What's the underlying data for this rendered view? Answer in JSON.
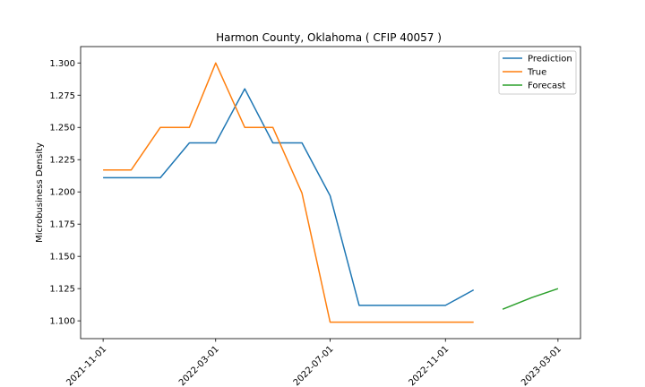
{
  "chart_data": {
    "type": "line",
    "title": "Harmon County, Oklahoma ( CFIP 40057 )",
    "xlabel": "",
    "ylabel": "Microbusiness Density",
    "xlim": [
      "2021-10-08",
      "2023-03-25"
    ],
    "ylim": [
      1.0862,
      1.3127
    ],
    "x_ticks": [
      "2021-11-01",
      "2022-03-01",
      "2022-07-01",
      "2022-11-01",
      "2023-03-01"
    ],
    "y_ticks": [
      1.1,
      1.125,
      1.15,
      1.175,
      1.2,
      1.225,
      1.25,
      1.275,
      1.3
    ],
    "y_tick_labels": [
      "1.100",
      "1.125",
      "1.150",
      "1.175",
      "1.200",
      "1.225",
      "1.250",
      "1.275",
      "1.300"
    ],
    "legend_position": "top-right",
    "grid": false,
    "series": [
      {
        "name": "Prediction",
        "color": "#1f77b4",
        "x": [
          "2021-11-01",
          "2021-12-01",
          "2022-01-01",
          "2022-02-01",
          "2022-03-01",
          "2022-04-01",
          "2022-05-01",
          "2022-06-01",
          "2022-07-01",
          "2022-08-01",
          "2022-09-01",
          "2022-10-01",
          "2022-11-01",
          "2022-12-01"
        ],
        "values": [
          1.211,
          1.211,
          1.211,
          1.238,
          1.238,
          1.28,
          1.238,
          1.238,
          1.197,
          1.112,
          1.112,
          1.112,
          1.112,
          1.124
        ]
      },
      {
        "name": "True",
        "color": "#ff7f0e",
        "x": [
          "2021-11-01",
          "2021-12-01",
          "2022-01-01",
          "2022-02-01",
          "2022-03-01",
          "2022-04-01",
          "2022-05-01",
          "2022-06-01",
          "2022-07-01",
          "2022-08-01",
          "2022-09-01",
          "2022-10-01",
          "2022-11-01",
          "2022-12-01"
        ],
        "values": [
          1.217,
          1.217,
          1.25,
          1.25,
          1.3,
          1.25,
          1.25,
          1.199,
          1.099,
          1.099,
          1.099,
          1.099,
          1.099,
          1.099
        ]
      },
      {
        "name": "Forecast",
        "color": "#2ca02c",
        "x": [
          "2023-01-01",
          "2023-02-01",
          "2023-03-01"
        ],
        "values": [
          1.109,
          1.118,
          1.125
        ]
      }
    ]
  }
}
